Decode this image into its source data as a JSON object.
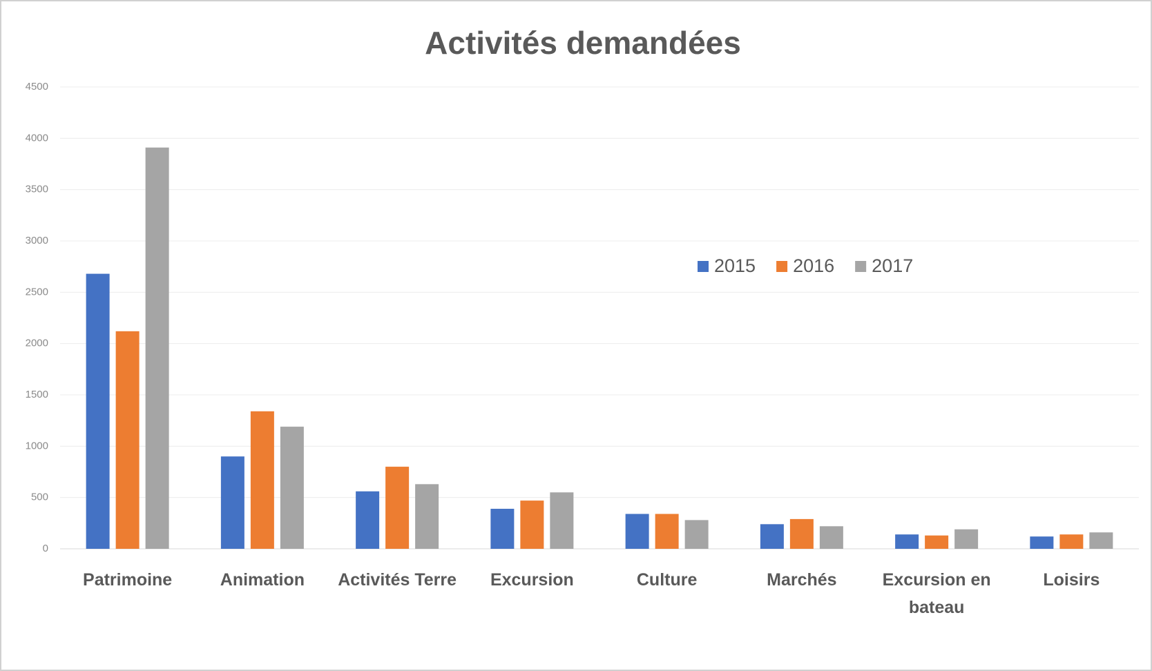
{
  "chart_data": {
    "type": "bar",
    "title": "Activités demandées",
    "categories": [
      "Patrimoine",
      "Animation",
      "Activités Terre",
      "Excursion",
      "Culture",
      "Marchés",
      "Excursion en bateau",
      "Loisirs"
    ],
    "series": [
      {
        "name": "2015",
        "color": "#4472c4",
        "values": [
          2680,
          900,
          560,
          390,
          340,
          240,
          140,
          120
        ]
      },
      {
        "name": "2016",
        "color": "#ed7d31",
        "values": [
          2120,
          1340,
          800,
          470,
          340,
          290,
          130,
          140
        ]
      },
      {
        "name": "2017",
        "color": "#a5a5a5",
        "values": [
          3910,
          1190,
          630,
          550,
          280,
          220,
          190,
          160
        ]
      }
    ],
    "ylim": [
      0,
      4500
    ],
    "yticks": [
      0,
      500,
      1000,
      1500,
      2000,
      2500,
      3000,
      3500,
      4000,
      4500
    ],
    "grid": true,
    "legend": "top-right"
  }
}
